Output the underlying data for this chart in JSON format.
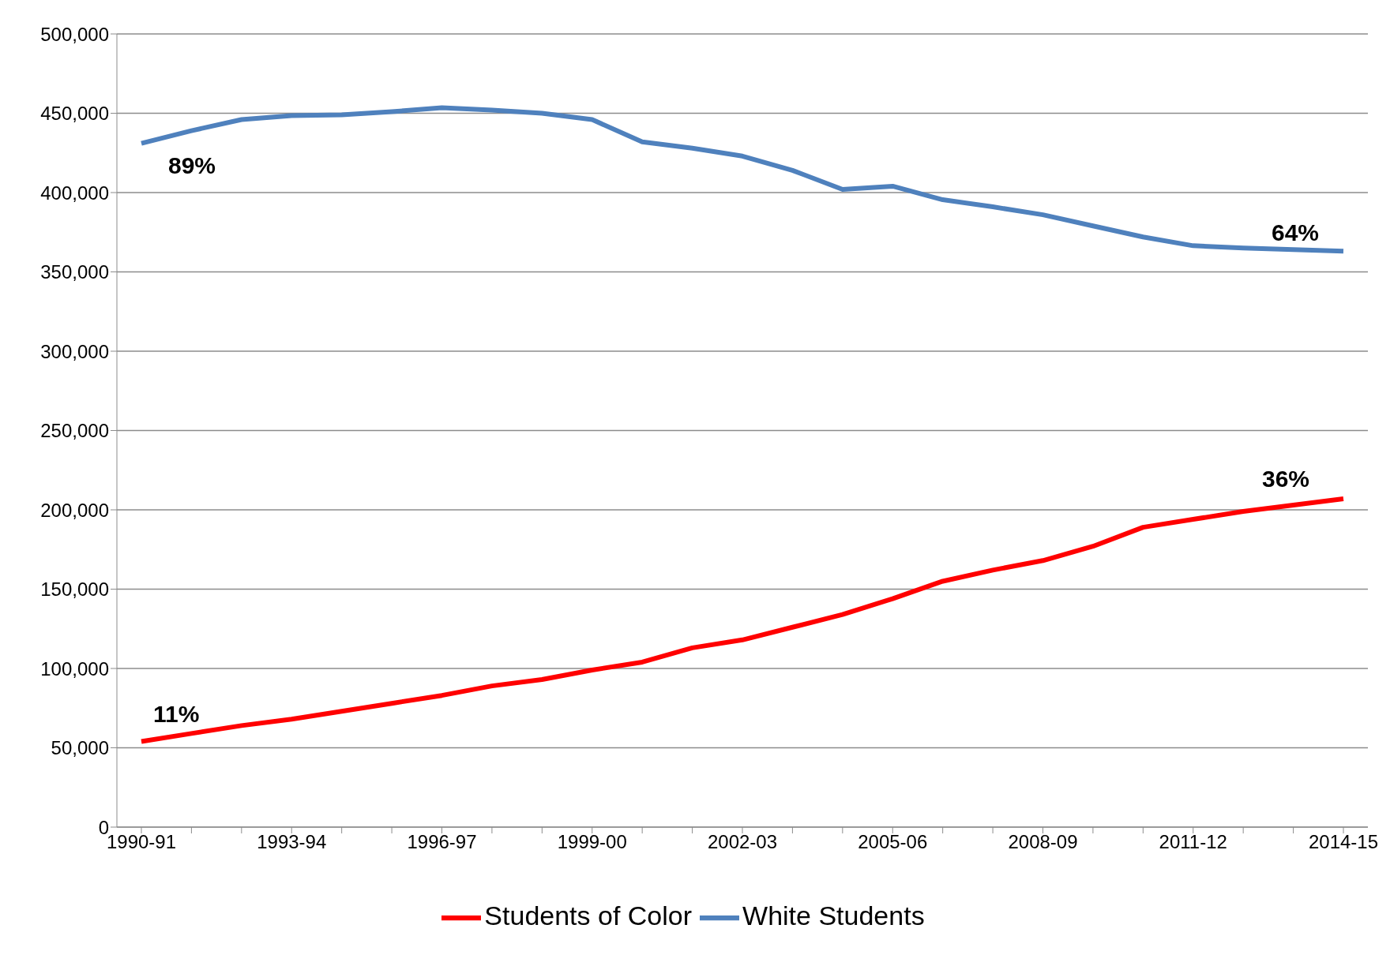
{
  "chart_data": {
    "type": "line",
    "categories": [
      "1990-91",
      null,
      null,
      "1993-94",
      null,
      null,
      "1996-97",
      null,
      null,
      "1999-00",
      null,
      null,
      "2002-03",
      null,
      null,
      "2005-06",
      null,
      null,
      "2008-09",
      null,
      null,
      "2011-12",
      null,
      null,
      "2014-15"
    ],
    "series": [
      {
        "name": "White Students",
        "color": "#4f81bd",
        "values": [
          431000,
          439000,
          446000,
          448500,
          449000,
          451000,
          453500,
          452000,
          450000,
          446000,
          432000,
          428000,
          423000,
          414000,
          402000,
          404000,
          395500,
          391000,
          386000,
          379000,
          372000,
          366500,
          365000,
          364000,
          363000
        ]
      },
      {
        "name": "Students of Color",
        "color": "#ff0000",
        "values": [
          54000,
          59000,
          64000,
          68000,
          73000,
          78000,
          83000,
          89000,
          93000,
          99000,
          104000,
          113000,
          118000,
          126000,
          134000,
          144000,
          155000,
          162000,
          168000,
          177000,
          189000,
          194000,
          199000,
          203000,
          207000
        ]
      }
    ],
    "ylim": [
      0,
      500000
    ],
    "yticks": [
      0,
      {
        "value": 50000,
        "label": "50,000"
      },
      {
        "value": 100000,
        "label": "100,000"
      },
      {
        "value": 150000,
        "label": "150,000"
      },
      {
        "value": 200000,
        "label": "200,000"
      },
      {
        "value": 250000,
        "label": "250,000"
      },
      {
        "value": 300000,
        "label": "300,000"
      },
      {
        "value": 350000,
        "label": "350,000"
      },
      {
        "value": 400000,
        "label": "400,000"
      },
      {
        "value": 450000,
        "label": "450,000"
      },
      {
        "value": 500000,
        "label": "500,000"
      }
    ],
    "annotations": [
      "89%",
      "64%",
      "11%",
      "36%"
    ],
    "grid": "y",
    "legend": "bottom",
    "marker": "none",
    "line_style": "solid"
  }
}
